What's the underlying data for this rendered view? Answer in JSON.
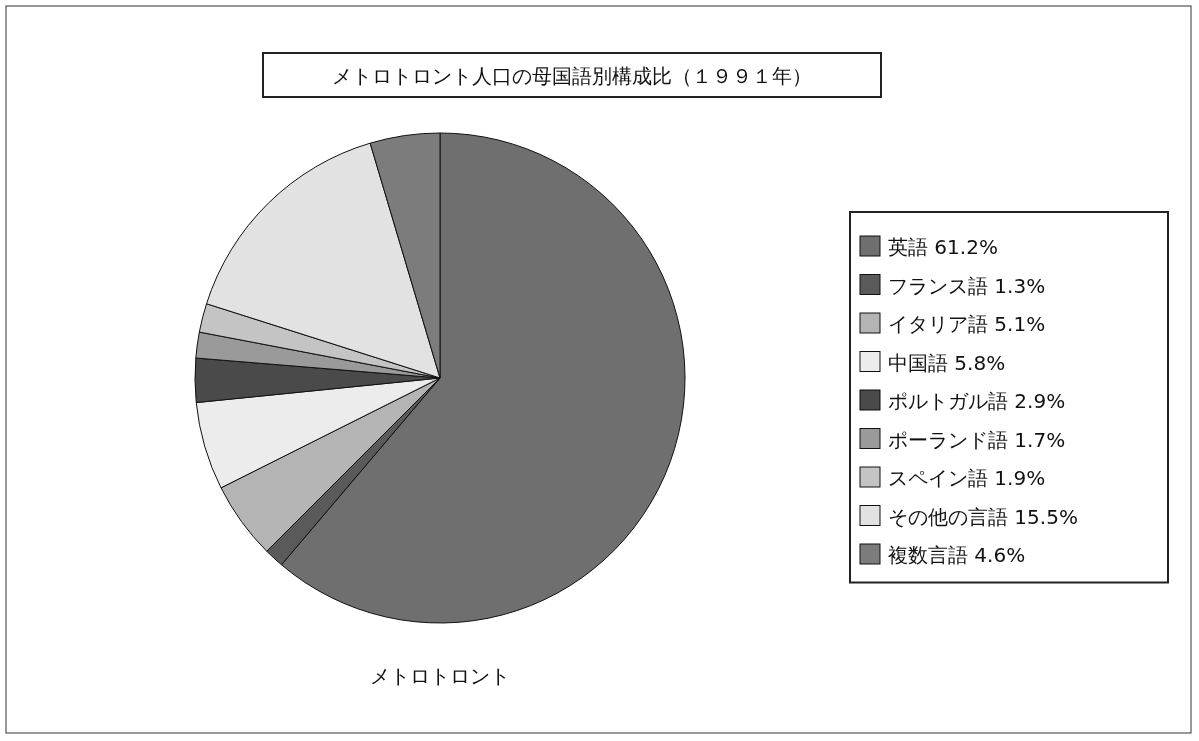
{
  "chart_data": {
    "type": "pie",
    "title": "メトロトロント人口の母国語別構成比（１９９１年）",
    "xlabel": "メトロトロント",
    "categories": [
      "英語",
      "フランス語",
      "イタリア語",
      "中国語",
      "ポルトガル語",
      "ポーランド語",
      "スペイン語",
      "その他の言語",
      "複数言語"
    ],
    "values": [
      61.2,
      1.3,
      5.1,
      5.8,
      2.9,
      1.7,
      1.9,
      15.5,
      4.6
    ],
    "value_labels": [
      "61.2%",
      "1.3%",
      "5.1%",
      "5.8%",
      "2.9%",
      "1.7%",
      "1.9%",
      "15.5%",
      "4.6%"
    ],
    "colors": [
      "#6f6f6f",
      "#5a5a5a",
      "#b4b4b4",
      "#ececec",
      "#4a4a4a",
      "#9a9a9a",
      "#c4c4c4",
      "#e2e2e2",
      "#7c7c7c"
    ],
    "legend": "right"
  }
}
